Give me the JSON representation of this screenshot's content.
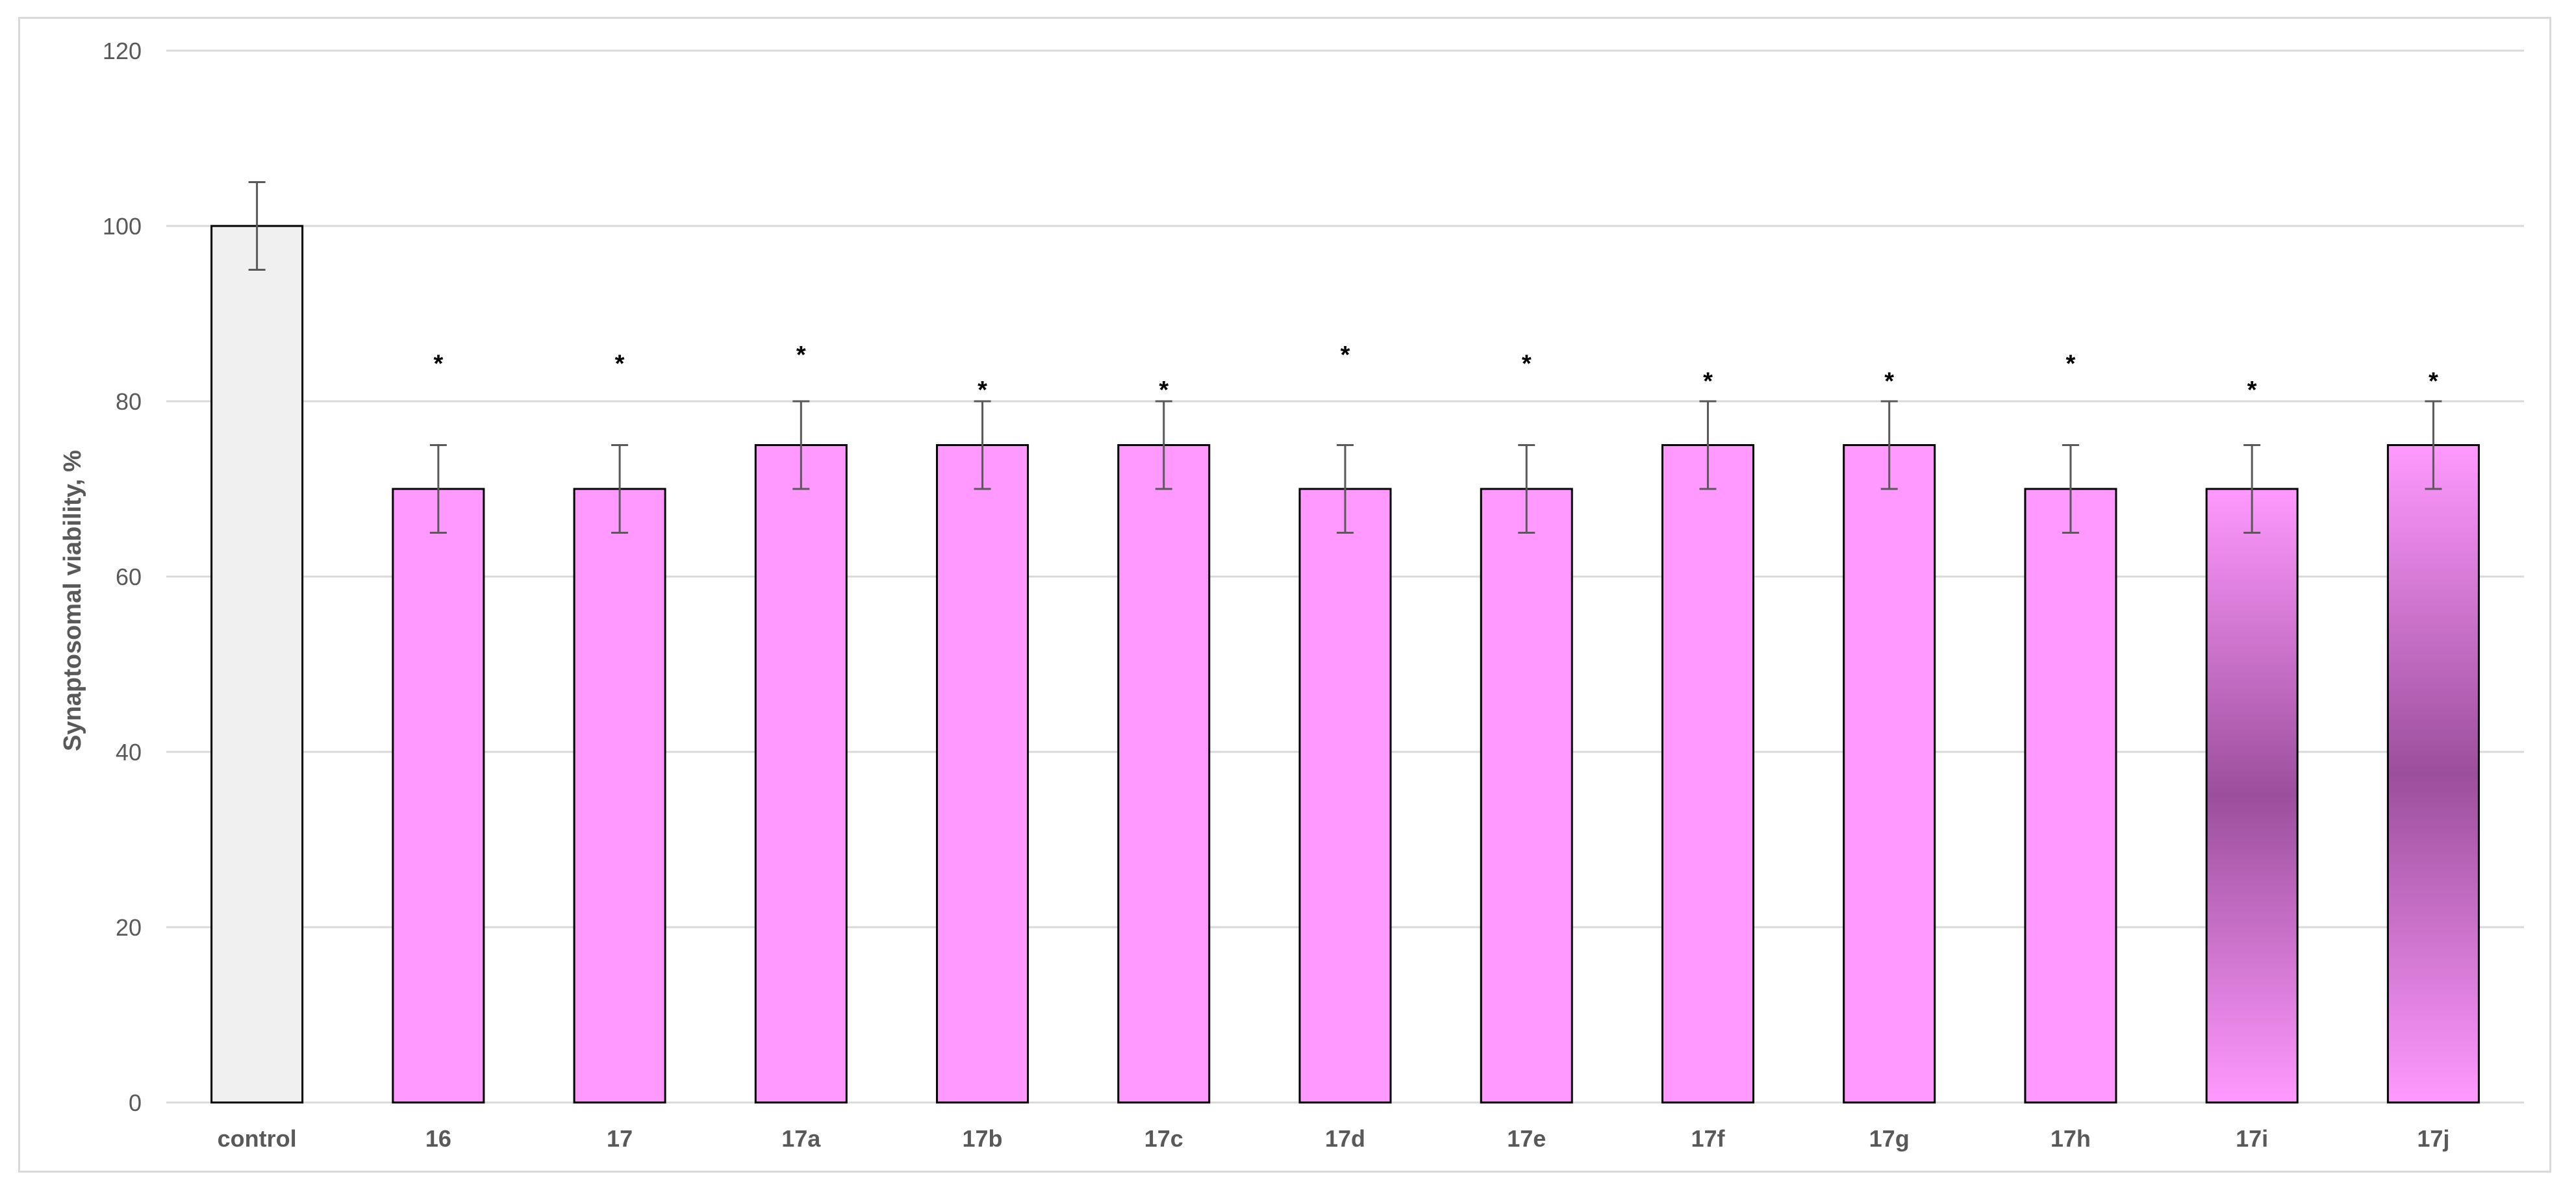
{
  "chart_data": {
    "type": "bar",
    "title": "",
    "xlabel": "",
    "ylabel": "Synaptosomal viability, %",
    "ylim": [
      0,
      120
    ],
    "yticks": [
      0,
      20,
      40,
      60,
      80,
      100,
      120
    ],
    "grid": true,
    "legend": "none",
    "categories": [
      "control",
      "16",
      "17",
      "17a",
      "17b",
      "17c",
      "17d",
      "17e",
      "17f",
      "17g",
      "17h",
      "17i",
      "17j"
    ],
    "values": [
      100,
      70,
      70,
      75,
      75,
      75,
      70,
      70,
      75,
      75,
      70,
      70,
      75
    ],
    "errors": [
      5,
      5,
      5,
      5,
      5,
      5,
      5,
      5,
      5,
      5,
      5,
      5,
      5
    ],
    "annotations": [
      "",
      "*",
      "*",
      "*",
      "*",
      "*",
      "*",
      "*",
      "*",
      "*",
      "*",
      "*",
      "*"
    ],
    "annotation_heights": [
      0,
      85,
      85,
      86,
      82,
      82,
      86,
      85,
      83,
      83,
      85,
      82,
      83
    ],
    "colors": {
      "control": "#f0f0f0",
      "treatment": "#ff99ff",
      "shaded_center": "#9c4f9c",
      "bar_outline": "#000000",
      "gridline": "#d9d9d9",
      "error_bar": "#595959"
    },
    "shaded_bars": [
      "17i",
      "17j"
    ]
  }
}
